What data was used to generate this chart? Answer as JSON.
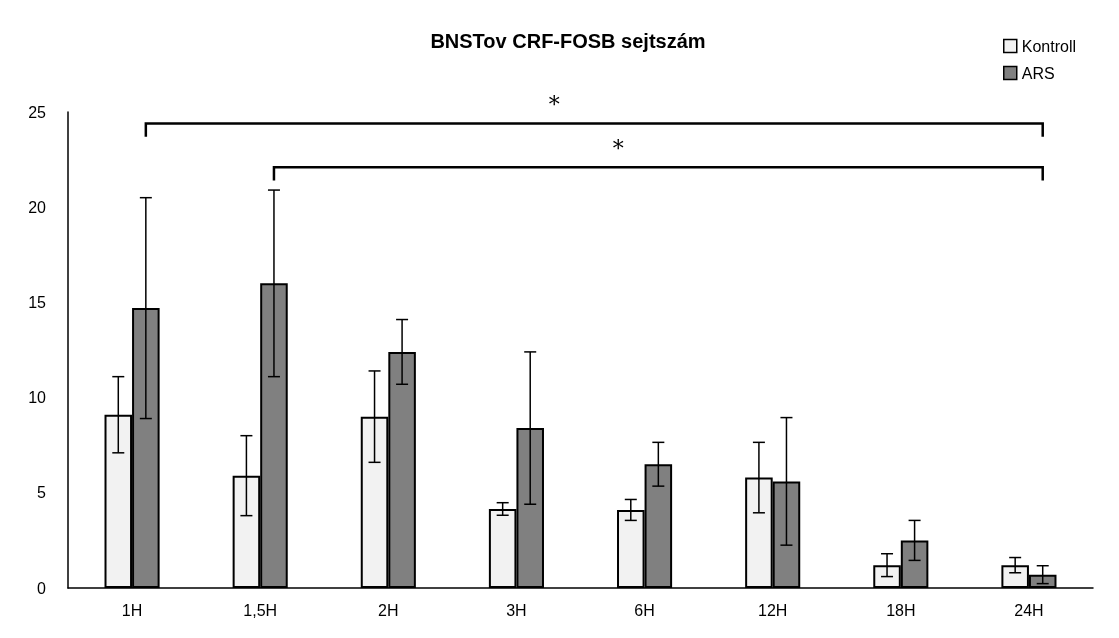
{
  "chart_data": {
    "type": "bar",
    "title": "BNSTov CRF-FOSB sejtszám",
    "categories": [
      "1H",
      "1,5H",
      "2H",
      "3H",
      "6H",
      "12H",
      "18H",
      "24H"
    ],
    "series": [
      {
        "name": "Kontroll",
        "color": "#f2f2f2",
        "values": [
          9.1,
          5.9,
          9.0,
          4.15,
          4.1,
          5.8,
          1.2,
          1.2
        ],
        "errors": [
          2.0,
          2.1,
          2.4,
          0.33,
          0.55,
          1.85,
          0.6,
          0.4
        ]
      },
      {
        "name": "ARS",
        "color": "#808080",
        "values": [
          14.7,
          16.0,
          12.4,
          8.4,
          6.5,
          5.6,
          2.5,
          0.7
        ],
        "errors": [
          5.8,
          4.9,
          1.7,
          4.0,
          1.15,
          3.35,
          1.05,
          0.47
        ]
      }
    ],
    "ylim": [
      0,
      25
    ],
    "yticks": [
      0,
      5,
      10,
      15,
      20,
      25
    ],
    "grid": false,
    "legend": "top right",
    "annotations": [
      "*",
      "*"
    ]
  }
}
